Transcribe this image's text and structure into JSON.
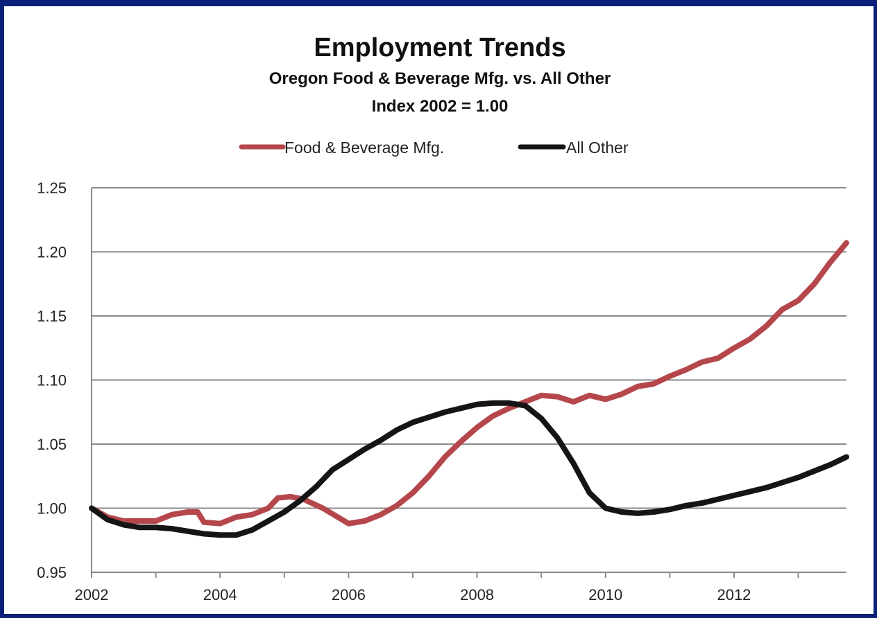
{
  "chart_data": {
    "type": "line",
    "title": "Employment Trends",
    "subtitle": "Oregon Food & Beverage Mfg. vs. All Other",
    "subtitle2": "Index 2002 = 1.00",
    "xlim": [
      2002,
      2013.75
    ],
    "ylim": [
      0.95,
      1.25
    ],
    "x_ticks": [
      2002,
      2004,
      2006,
      2008,
      2010,
      2012
    ],
    "y_ticks": [
      "0.95",
      "1.00",
      "1.05",
      "1.10",
      "1.15",
      "1.20",
      "1.25"
    ],
    "grid": "horizontal",
    "legend_position": "top",
    "series": [
      {
        "name": "Food & Beverage Mfg.",
        "color": "#b5474c",
        "points": [
          [
            2002.0,
            1.0
          ],
          [
            2002.25,
            0.993
          ],
          [
            2002.5,
            0.99
          ],
          [
            2002.75,
            0.99
          ],
          [
            2003.0,
            0.99
          ],
          [
            2003.25,
            0.995
          ],
          [
            2003.5,
            0.997
          ],
          [
            2003.65,
            0.997
          ],
          [
            2003.75,
            0.989
          ],
          [
            2004.0,
            0.988
          ],
          [
            2004.25,
            0.993
          ],
          [
            2004.5,
            0.995
          ],
          [
            2004.75,
            1.0
          ],
          [
            2004.9,
            1.008
          ],
          [
            2005.1,
            1.009
          ],
          [
            2005.3,
            1.007
          ],
          [
            2005.6,
            1.0
          ],
          [
            2005.9,
            0.991
          ],
          [
            2006.0,
            0.988
          ],
          [
            2006.25,
            0.99
          ],
          [
            2006.5,
            0.995
          ],
          [
            2006.75,
            1.002
          ],
          [
            2007.0,
            1.012
          ],
          [
            2007.25,
            1.025
          ],
          [
            2007.5,
            1.04
          ],
          [
            2007.75,
            1.052
          ],
          [
            2008.0,
            1.063
          ],
          [
            2008.25,
            1.072
          ],
          [
            2008.5,
            1.078
          ],
          [
            2008.75,
            1.083
          ],
          [
            2009.0,
            1.088
          ],
          [
            2009.25,
            1.087
          ],
          [
            2009.5,
            1.083
          ],
          [
            2009.75,
            1.088
          ],
          [
            2010.0,
            1.085
          ],
          [
            2010.25,
            1.089
          ],
          [
            2010.5,
            1.095
          ],
          [
            2010.75,
            1.097
          ],
          [
            2011.0,
            1.103
          ],
          [
            2011.25,
            1.108
          ],
          [
            2011.5,
            1.114
          ],
          [
            2011.75,
            1.117
          ],
          [
            2012.0,
            1.125
          ],
          [
            2012.25,
            1.132
          ],
          [
            2012.5,
            1.142
          ],
          [
            2012.75,
            1.155
          ],
          [
            2013.0,
            1.162
          ],
          [
            2013.25,
            1.175
          ],
          [
            2013.5,
            1.192
          ],
          [
            2013.75,
            1.207
          ]
        ]
      },
      {
        "name": "All Other",
        "color": "#151515",
        "points": [
          [
            2002.0,
            1.0
          ],
          [
            2002.25,
            0.991
          ],
          [
            2002.5,
            0.987
          ],
          [
            2002.75,
            0.985
          ],
          [
            2003.0,
            0.985
          ],
          [
            2003.25,
            0.984
          ],
          [
            2003.5,
            0.982
          ],
          [
            2003.75,
            0.98
          ],
          [
            2004.0,
            0.979
          ],
          [
            2004.25,
            0.979
          ],
          [
            2004.5,
            0.983
          ],
          [
            2004.75,
            0.99
          ],
          [
            2005.0,
            0.997
          ],
          [
            2005.25,
            1.006
          ],
          [
            2005.5,
            1.017
          ],
          [
            2005.75,
            1.03
          ],
          [
            2006.0,
            1.038
          ],
          [
            2006.25,
            1.046
          ],
          [
            2006.5,
            1.053
          ],
          [
            2006.75,
            1.061
          ],
          [
            2007.0,
            1.067
          ],
          [
            2007.25,
            1.071
          ],
          [
            2007.5,
            1.075
          ],
          [
            2007.75,
            1.078
          ],
          [
            2008.0,
            1.081
          ],
          [
            2008.25,
            1.082
          ],
          [
            2008.5,
            1.082
          ],
          [
            2008.75,
            1.08
          ],
          [
            2009.0,
            1.07
          ],
          [
            2009.25,
            1.055
          ],
          [
            2009.5,
            1.035
          ],
          [
            2009.75,
            1.012
          ],
          [
            2010.0,
            1.0
          ],
          [
            2010.25,
            0.997
          ],
          [
            2010.5,
            0.996
          ],
          [
            2010.75,
            0.997
          ],
          [
            2011.0,
            0.999
          ],
          [
            2011.25,
            1.002
          ],
          [
            2011.5,
            1.004
          ],
          [
            2011.75,
            1.007
          ],
          [
            2012.0,
            1.01
          ],
          [
            2012.25,
            1.013
          ],
          [
            2012.5,
            1.016
          ],
          [
            2012.75,
            1.02
          ],
          [
            2013.0,
            1.024
          ],
          [
            2013.25,
            1.029
          ],
          [
            2013.5,
            1.034
          ],
          [
            2013.75,
            1.04
          ]
        ]
      }
    ]
  }
}
